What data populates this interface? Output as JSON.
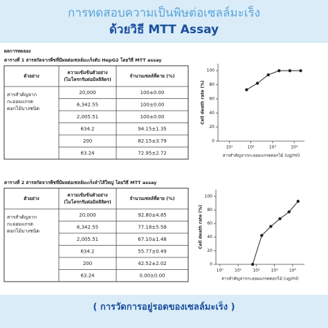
{
  "header": {
    "title": "การทดสอบความเป็นพิษต่อเซลล์มะเร็ง",
    "subtitle": "ด้วยวิธี MTT Assay"
  },
  "section_title": "ผลการทดลอง",
  "tables": [
    {
      "caption": "ตารางที่ 1 สารสกัดจากพืชที่มีผลต่อเซลล์มะเร็งตับ HepG2 โดยวิธี MTT assay",
      "columns": [
        [
          "ตัวอย่าง"
        ],
        [
          "ความเข้มข้นตัวอย่าง",
          "(ไมโครกรัมต่อมิลลิลิตร)"
        ],
        [
          "จำนวนเซลล์ที่ตาย (%)"
        ]
      ],
      "sample": [
        "สารสำคัญจาก",
        "กะออมแกรต",
        "ดอกไม้บางชนิด"
      ],
      "rows": [
        [
          "20,000",
          "100±0.00"
        ],
        [
          "6,342.55",
          "100±0.00"
        ],
        [
          "2,005.51",
          "100±0.00"
        ],
        [
          "634.2",
          "94.15±1.35"
        ],
        [
          "200",
          "82.15±3.79"
        ],
        [
          "63.24",
          "72.95±2.72"
        ]
      ]
    },
    {
      "caption": "ตารางที่ 2 สารสกัดจากพืชที่มีผลต่อเซลล์มะเร็งลำไส้ใหญ่ โดยวิธี MTT assay",
      "columns": [
        [
          "ตัวอย่าง"
        ],
        [
          "ความเข้มข้นตัวอย่าง",
          "(ไมโครกรัมต่อมิลลิลิตร)"
        ],
        [
          "จำนวนเซลล์ที่ตาย (%)"
        ]
      ],
      "sample": [
        "สารสำคัญจาก",
        "กะออมแกรต",
        "ดอกไม้บางชนิด"
      ],
      "rows": [
        [
          "20,000",
          "92.80±4.85"
        ],
        [
          "6,342.55",
          "77.18±5.58"
        ],
        [
          "2,005.51",
          "67.10±1.48"
        ],
        [
          "634.2",
          "55.77±0.49"
        ],
        [
          "200",
          "42.52±2.02"
        ],
        [
          "63.24",
          "0.00±0.00"
        ]
      ]
    }
  ],
  "chart_data": [
    {
      "type": "scatter",
      "xlabel": "สารสำคัญจากกะออมแกรดดอกไม้ (ug/ml)",
      "ylabel": "Cell death rate (%)",
      "x": [
        63.24,
        200,
        634.2,
        2005.51,
        6342.55,
        20000
      ],
      "values": [
        72.95,
        82.15,
        94.15,
        100,
        100,
        100
      ],
      "color": "#222",
      "log_x": true,
      "xlim": [
        3,
        30000
      ],
      "ylim": [
        0,
        110
      ],
      "xticks": [
        {
          "value": 10,
          "label": "10¹"
        },
        {
          "value": 100,
          "label": "10²"
        },
        {
          "value": 1000,
          "label": "10³"
        },
        {
          "value": 10000,
          "label": "10⁴"
        }
      ],
      "yticks": [
        0,
        20,
        40,
        60,
        80,
        100
      ]
    },
    {
      "type": "scatter",
      "xlabel": "สารสำคัญจากกะออมแกรดดอกไม้ (ug/ml)",
      "ylabel": "Cell death rate (%)",
      "x": [
        63.24,
        200,
        634.2,
        2005.51,
        6342.55,
        20000
      ],
      "values": [
        0,
        42.52,
        55.77,
        67.1,
        77.18,
        92.8
      ],
      "color": "#222",
      "log_x": true,
      "xlim": [
        0.6,
        45000
      ],
      "ylim": [
        0,
        110
      ],
      "xticks": [
        {
          "value": 1,
          "label": "10⁰"
        },
        {
          "value": 10,
          "label": "10¹"
        },
        {
          "value": 100,
          "label": "10²"
        },
        {
          "value": 1000,
          "label": "10³"
        },
        {
          "value": 10000,
          "label": "10⁴"
        }
      ],
      "yticks": [
        0,
        20,
        40,
        60,
        80,
        100
      ]
    }
  ],
  "footer": "( การวัดการอยู่รอดของเซลล์มะเร็ง )"
}
